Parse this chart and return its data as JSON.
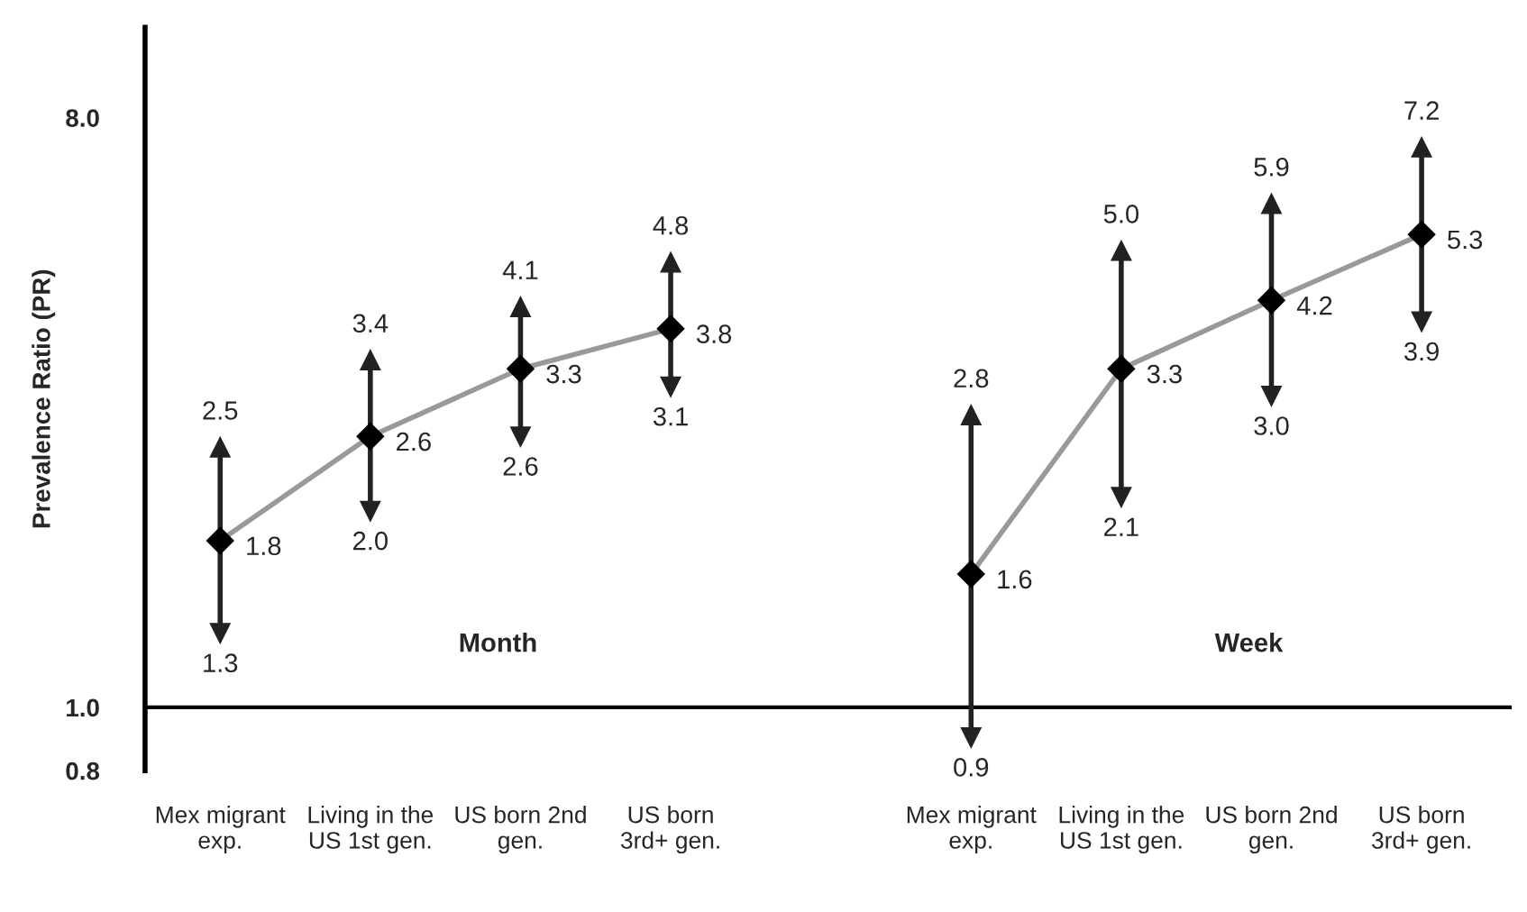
{
  "chart_data": {
    "type": "line",
    "ylabel": "Prevalence Ratio (PR)",
    "categories": [
      "Mex migrant\nexp.",
      "Living in the\nUS 1st gen.",
      "US born 2nd\ngen.",
      "US born\n3rd+ gen.",
      null,
      "Mex migrant\nexp.",
      "Living in the\nUS 1st gen.",
      "US born 2nd\ngen.",
      "US born\n3rd+ gen."
    ],
    "series": [
      {
        "color": "#999999",
        "colors": [
          "#000000",
          "#000000",
          "#000000",
          "#000000",
          null,
          "#000000",
          "#000000",
          "#000000",
          "#000000"
        ],
        "values": [
          1.8,
          2.6,
          3.3,
          3.8,
          null,
          1.6,
          3.3,
          4.2,
          5.3
        ],
        "errors": [
          [
            1.3,
            2.5
          ],
          [
            2.0,
            3.4
          ],
          [
            2.6,
            4.1
          ],
          [
            3.1,
            4.8
          ],
          null,
          [
            0.9,
            2.8
          ],
          [
            2.1,
            5.0
          ],
          [
            3.0,
            5.9
          ],
          [
            3.9,
            7.2
          ]
        ]
      }
    ],
    "data_labels": true,
    "marker": "diamond",
    "log": "y",
    "ylim": [
      0.8,
      11
    ],
    "yticks": [
      0.8,
      {
        "value": 1,
        "label": "1.0"
      },
      {
        "value": 8,
        "label": "8.0"
      }
    ],
    "ref_lines": [
      {
        "axis": "y",
        "value": 1,
        "color": "#000000"
      }
    ],
    "annotations": [
      "Month",
      "Week",
      {
        "text": "2.5",
        "x": "Mex migrant\nexp.",
        "y": 2.5
      },
      {
        "text": "1.3",
        "x": "Mex migrant\nexp.",
        "y": 1.3
      },
      {
        "text": "3.4",
        "x": "Living in the\nUS 1st gen.",
        "y": 3.4
      },
      {
        "text": "2.0",
        "x": "Living in the\nUS 1st gen.",
        "y": 2.0
      },
      {
        "text": "4.1",
        "x": "US born 2nd\ngen.",
        "y": 4.1
      },
      {
        "text": "2.6",
        "x": "US born 2nd\ngen.",
        "y": 2.6
      },
      {
        "text": "4.8",
        "x": "US born\n3rd+ gen.",
        "y": 4.8
      },
      {
        "text": "3.1",
        "x": "US born\n3rd+ gen.",
        "y": 3.1
      },
      "2.8",
      "0.9",
      "5.0",
      "2.1",
      "5.9",
      "3.0",
      "7.2",
      "3.9"
    ],
    "grid": false,
    "legend": false
  }
}
